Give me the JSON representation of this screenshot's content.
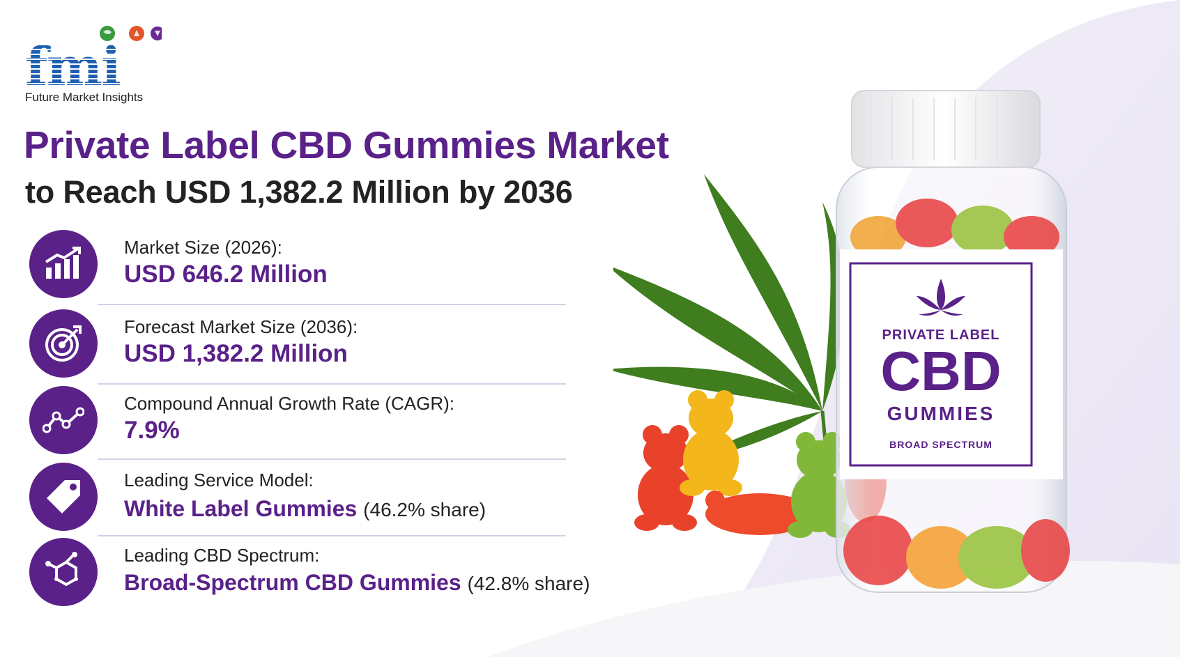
{
  "logo": {
    "letters": "fmi",
    "tagline": "Future Market Insights"
  },
  "title": "Private Label CBD Gummies Market",
  "subtitle": "to Reach USD 1,382.2 Million by 2036",
  "stats": [
    {
      "icon": "bar-chart-icon",
      "label": "Market Size (2026):",
      "value": "USD 646.2 Million",
      "share": ""
    },
    {
      "icon": "target-icon",
      "label": "Forecast Market Size (2036):",
      "value": "USD 1,382.2 Million",
      "share": ""
    },
    {
      "icon": "trend-line-icon",
      "label": "Compound Annual Growth Rate (CAGR):",
      "value": "7.9%",
      "share": ""
    },
    {
      "icon": "price-tag-icon",
      "label": "Leading Service Model:",
      "value": "White Label Gummies",
      "share": "(46.2% share)"
    },
    {
      "icon": "molecule-icon",
      "label": "Leading CBD Spectrum:",
      "value": "Broad-Spectrum CBD Gummies",
      "share": "(42.8% share)"
    }
  ],
  "jar_label": {
    "line1": "PRIVATE LABEL",
    "line2": "CBD",
    "line3": "GUMMIES",
    "line4": "BROAD SPECTRUM"
  },
  "colors": {
    "brand_purple": "#5a2189",
    "logo_blue": "#1f5fb0",
    "text_dark": "#222222"
  }
}
